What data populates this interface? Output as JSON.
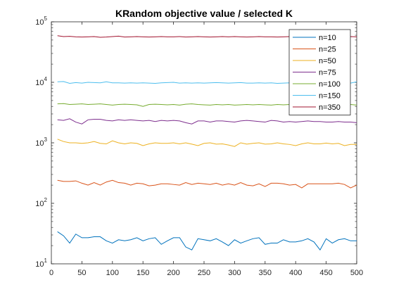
{
  "chart_data": {
    "type": "line",
    "title": "KRandom objective value / selected K",
    "xlabel": "",
    "ylabel": "",
    "xlim": [
      0,
      500
    ],
    "ylim": [
      10,
      100000
    ],
    "yscale": "log",
    "grid": false,
    "legend_position": "top-right",
    "x_ticks": [
      0,
      50,
      100,
      150,
      200,
      250,
      300,
      350,
      400,
      450,
      500
    ],
    "x_tick_labels": [
      "0",
      "50",
      "100",
      "150",
      "200",
      "250",
      "300",
      "350",
      "400",
      "450",
      "500"
    ],
    "y_ticks": [
      10,
      100,
      1000,
      10000,
      100000
    ],
    "y_tick_labels": [
      {
        "base": "10",
        "exp": "1"
      },
      {
        "base": "10",
        "exp": "2"
      },
      {
        "base": "10",
        "exp": "3"
      },
      {
        "base": "10",
        "exp": "4"
      },
      {
        "base": "10",
        "exp": "5"
      }
    ],
    "x": [
      10,
      20,
      30,
      40,
      50,
      60,
      70,
      80,
      90,
      100,
      110,
      120,
      130,
      140,
      150,
      160,
      170,
      180,
      190,
      200,
      210,
      220,
      230,
      240,
      250,
      260,
      270,
      280,
      290,
      300,
      310,
      320,
      330,
      340,
      350,
      360,
      370,
      380,
      390,
      400,
      410,
      420,
      430,
      440,
      450,
      460,
      470,
      480,
      490,
      500
    ],
    "series": [
      {
        "name": "n=10",
        "color": "#0072BD",
        "values": [
          34,
          29,
          22,
          31,
          27,
          27,
          28,
          28,
          24,
          22,
          25,
          24,
          25,
          27,
          24,
          26,
          27,
          21,
          24,
          27,
          27,
          19,
          17,
          26,
          25,
          24,
          26,
          23,
          20,
          25,
          22,
          24,
          26,
          27,
          21,
          22,
          22,
          25,
          23,
          23,
          24,
          26,
          23,
          17,
          26,
          22,
          25,
          26,
          24,
          24
        ]
      },
      {
        "name": "n=25",
        "color": "#D95319",
        "values": [
          240,
          230,
          230,
          235,
          215,
          200,
          220,
          200,
          225,
          240,
          220,
          215,
          200,
          215,
          210,
          195,
          200,
          210,
          210,
          205,
          200,
          220,
          205,
          215,
          210,
          205,
          215,
          200,
          210,
          200,
          220,
          200,
          195,
          210,
          190,
          215,
          215,
          210,
          200,
          205,
          180,
          210,
          210,
          210,
          210,
          210,
          215,
          205,
          180,
          200
        ]
      },
      {
        "name": "n=50",
        "color": "#EDB120",
        "values": [
          1150,
          1050,
          1000,
          1000,
          980,
          1000,
          1050,
          980,
          960,
          1080,
          1000,
          960,
          1000,
          980,
          900,
          960,
          1000,
          980,
          980,
          1000,
          960,
          1000,
          950,
          900,
          980,
          1000,
          950,
          960,
          920,
          870,
          1000,
          950,
          980,
          1000,
          950,
          960,
          1000,
          960,
          940,
          900,
          960,
          1000,
          960,
          960,
          990,
          960,
          980,
          900,
          940,
          940
        ]
      },
      {
        "name": "n=75",
        "color": "#7E2F8E",
        "values": [
          2400,
          2350,
          2500,
          2200,
          2050,
          2400,
          2450,
          2450,
          2350,
          2300,
          2400,
          2350,
          2400,
          2350,
          2300,
          2350,
          2250,
          2350,
          2300,
          2350,
          2300,
          2150,
          2050,
          2300,
          2300,
          2200,
          2300,
          2300,
          2250,
          2200,
          2300,
          2350,
          2300,
          2250,
          2200,
          2350,
          2300,
          2200,
          2250,
          2200,
          2250,
          2300,
          2250,
          2250,
          2200,
          2200,
          2250,
          2200,
          2200,
          2150
        ]
      },
      {
        "name": "n=100",
        "color": "#77AC30",
        "values": [
          4400,
          4450,
          4300,
          4350,
          4400,
          4300,
          4350,
          4400,
          4300,
          4200,
          4300,
          4350,
          4300,
          4250,
          4000,
          4300,
          4350,
          4300,
          4250,
          4300,
          4200,
          4350,
          4400,
          4300,
          4250,
          4200,
          4300,
          4250,
          4300,
          4200,
          4250,
          4300,
          4250,
          4300,
          4250,
          4200,
          4300,
          4250,
          4300,
          4200,
          4250,
          4300,
          4200,
          4250,
          4300,
          4250,
          4200,
          4250,
          4300,
          4200
        ]
      },
      {
        "name": "n=150",
        "color": "#4DBEEE",
        "values": [
          10200,
          10300,
          9600,
          9900,
          9700,
          10000,
          9900,
          9800,
          10200,
          9800,
          9800,
          9700,
          9800,
          9700,
          9800,
          9700,
          9600,
          9800,
          9900,
          10000,
          9700,
          9800,
          9700,
          9800,
          9700,
          9800,
          9900,
          9800,
          9700,
          9800,
          9900,
          9700,
          9700,
          9800,
          9700,
          9800,
          9600,
          9700,
          9800,
          9700,
          9800,
          9700,
          9800,
          9700,
          9800,
          9700,
          9800,
          9600,
          9700,
          10200
        ]
      },
      {
        "name": "n=350",
        "color": "#A2142F",
        "values": [
          59000,
          57000,
          57500,
          56500,
          56000,
          56500,
          57000,
          55500,
          56000,
          57000,
          58000,
          56000,
          56500,
          57000,
          56500,
          56000,
          56500,
          57000,
          56500,
          56500,
          57000,
          56000,
          56500,
          57000,
          56500,
          56000,
          56500,
          57000,
          56500,
          57000,
          56500,
          56000,
          56500,
          57000,
          56500,
          56500,
          56000,
          56500,
          57000,
          56500,
          56000,
          56500,
          56500,
          57000,
          56500,
          56000,
          56500,
          56500,
          57000,
          56500
        ]
      }
    ]
  }
}
